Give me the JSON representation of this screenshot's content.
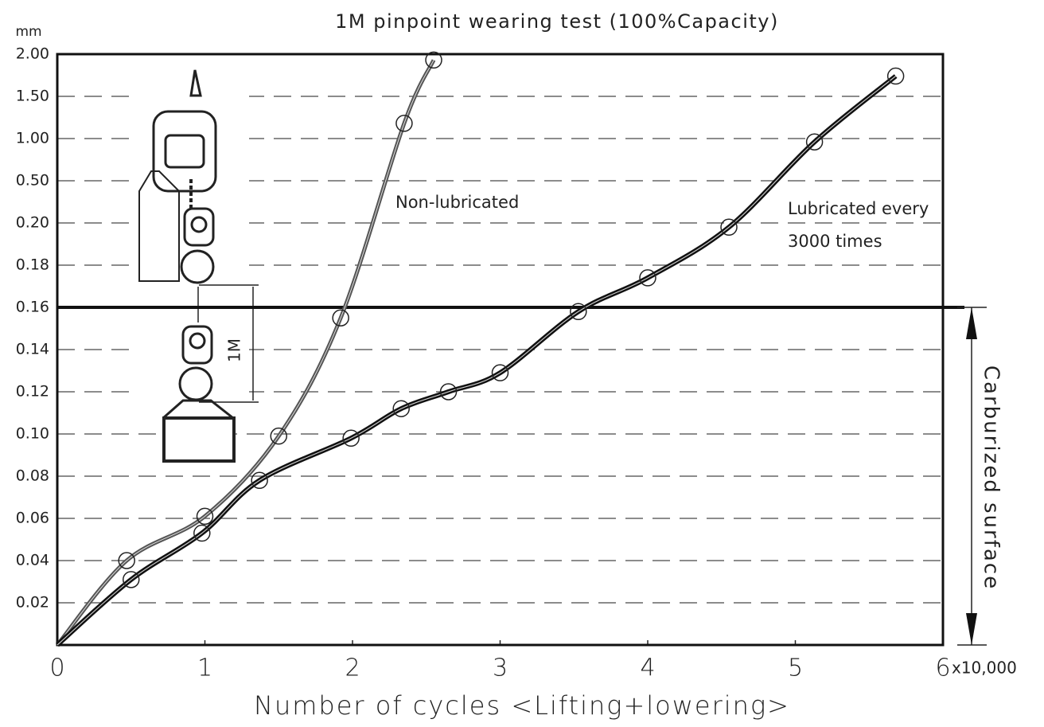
{
  "chart_data": {
    "type": "line",
    "title": "1M pinpoint wearing test (100%Capacity)",
    "y_unit": "mm",
    "x_label": "Number of cycles <Lifting+lowering>",
    "x_multiplier": "x10,000",
    "illustration_label": "1M",
    "surface_label": "Carburized surface",
    "surface_depth": 0.16,
    "y_scale": "piecewise",
    "xlim": [
      0,
      6
    ],
    "xticks": [
      0,
      1,
      2,
      3,
      4,
      5,
      6
    ],
    "ylim": [
      0,
      2
    ],
    "yticks": [
      0.02,
      0.04,
      0.06,
      0.08,
      {
        "value": 0.1,
        "label": "0.10"
      },
      0.12,
      0.14,
      0.16,
      0.18,
      {
        "value": 0.2,
        "label": "0.20"
      },
      {
        "value": 0.5,
        "label": "0.50"
      },
      {
        "value": 1,
        "label": "1.00"
      },
      {
        "value": 1.5,
        "label": "1.50"
      },
      {
        "value": 2,
        "label": "2.00"
      }
    ],
    "grid": true,
    "series": [
      {
        "name": "Non-lubricated",
        "color": "#555555",
        "x": [
          0,
          0.47,
          1.0,
          1.5,
          1.92,
          2.35,
          2.55
        ],
        "values": [
          0,
          0.04,
          0.061,
          0.099,
          0.155,
          1.18,
          1.93
        ]
      },
      {
        "name": "Lubricated every 3000 times",
        "color": "#111111",
        "x": [
          0,
          0.5,
          0.98,
          1.37,
          1.99,
          2.33,
          2.65,
          3.0,
          3.53,
          4.0,
          4.55,
          5.13,
          5.68
        ],
        "values": [
          0,
          0.031,
          0.053,
          0.078,
          0.098,
          0.112,
          0.12,
          0.129,
          0.158,
          0.174,
          0.198,
          0.96,
          1.74
        ]
      }
    ]
  }
}
